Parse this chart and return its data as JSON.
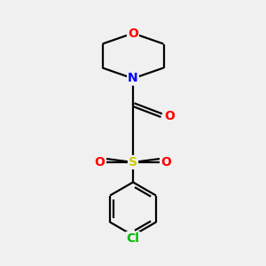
{
  "background_color": "#f0f0f0",
  "bond_color": "#000000",
  "atom_colors": {
    "O": "#ff0000",
    "N": "#0000ff",
    "S": "#cccc00",
    "Cl": "#00bb00",
    "C": "#000000"
  },
  "figsize": [
    3.0,
    3.0
  ],
  "dpi": 100
}
